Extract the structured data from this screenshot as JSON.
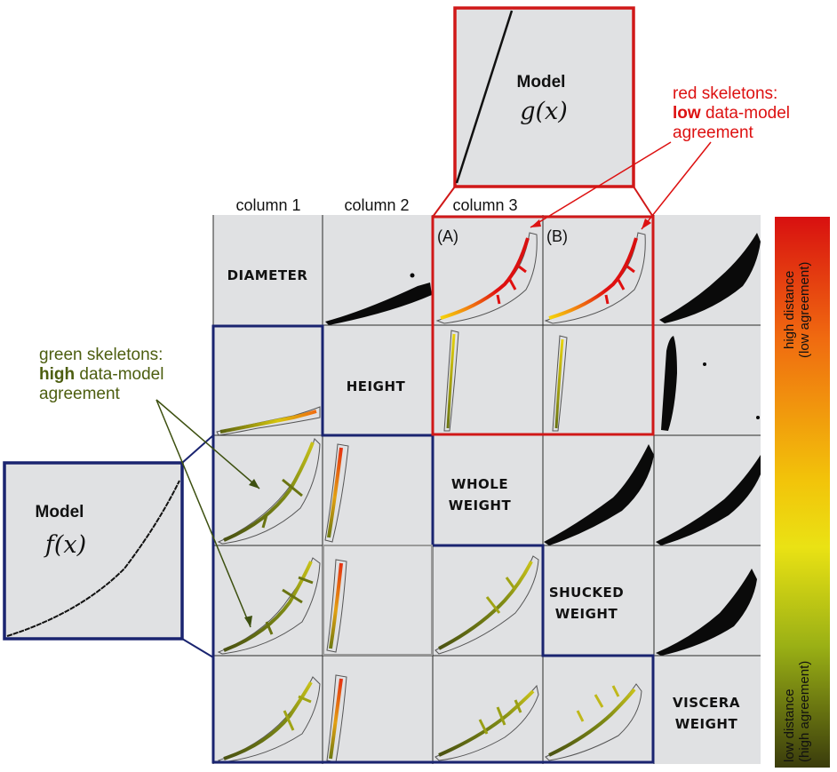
{
  "columns": [
    "column 1",
    "column 2",
    "column 3"
  ],
  "variables": [
    "DIAMETER",
    "HEIGHT",
    "WHOLE WEIGHT",
    "SHUCKED WEIGHT",
    "VISCERA WEIGHT"
  ],
  "model_g": {
    "title": "Model",
    "fn": "g(x)"
  },
  "model_f": {
    "title": "Model",
    "fn": "f(x)"
  },
  "panel_tags": {
    "a": "(A)",
    "b": "(B)"
  },
  "red_annotation": {
    "line1": "red skeletons:",
    "bold": "low",
    "line2_rest": " data-model",
    "line3": "agreement"
  },
  "green_annotation": {
    "line1": "green skeletons:",
    "bold": "high",
    "line2_rest": " data-model",
    "line3": "agreement"
  },
  "colorbar": {
    "top_line1": "high distance",
    "top_line2": "(low agreement)",
    "bottom_line1": "low distance",
    "bottom_line2": "(high agreement)",
    "colors": [
      "#d81010",
      "#f06a10",
      "#f2c40a",
      "#eae214",
      "#9ab015",
      "#3a3c0c"
    ]
  },
  "colors": {
    "red_frame": "#d01818",
    "blue_frame": "#1a2470",
    "cell_bg": "#e0e1e3",
    "grid": "#2a2a2a"
  }
}
